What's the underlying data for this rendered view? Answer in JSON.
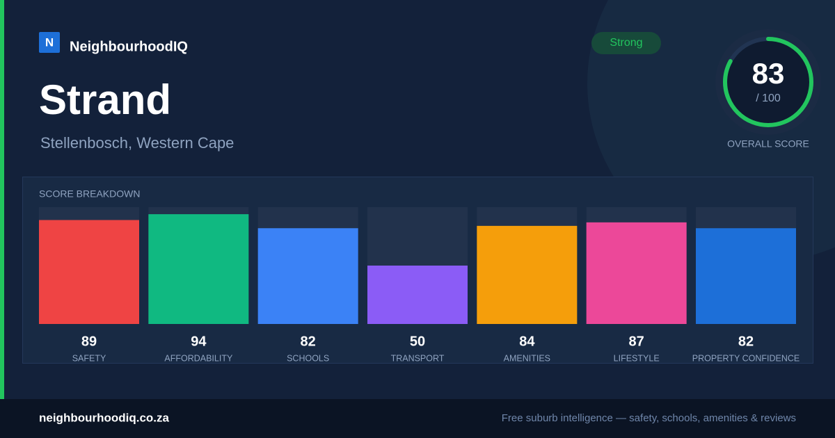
{
  "brand": {
    "logo_letter": "N",
    "name": "NeighbourhoodIQ"
  },
  "title": "Strand",
  "subtitle": "Stellenbosch, Western Cape",
  "badge": "Strong",
  "overall": {
    "value": 83,
    "max": 100,
    "max_label": "/ 100",
    "label": "OVERALL SCORE"
  },
  "footer": {
    "url": "neighbourhoodiq.co.za",
    "tagline": "Free suburb intelligence — safety, schools, amenities & reviews"
  },
  "chart_data": {
    "type": "bar",
    "title": "SCORE BREAKDOWN",
    "categories": [
      "SAFETY",
      "AFFORDABILITY",
      "SCHOOLS",
      "TRANSPORT",
      "AMENITIES",
      "LIFESTYLE",
      "PROPERTY CONFIDENCE"
    ],
    "values": [
      89,
      94,
      82,
      50,
      84,
      87,
      82
    ],
    "colors": [
      "#ef4444",
      "#10b981",
      "#3b82f6",
      "#8b5cf6",
      "#f59e0b",
      "#ec4899",
      "#1d6fd8"
    ],
    "ylim": [
      0,
      100
    ]
  }
}
